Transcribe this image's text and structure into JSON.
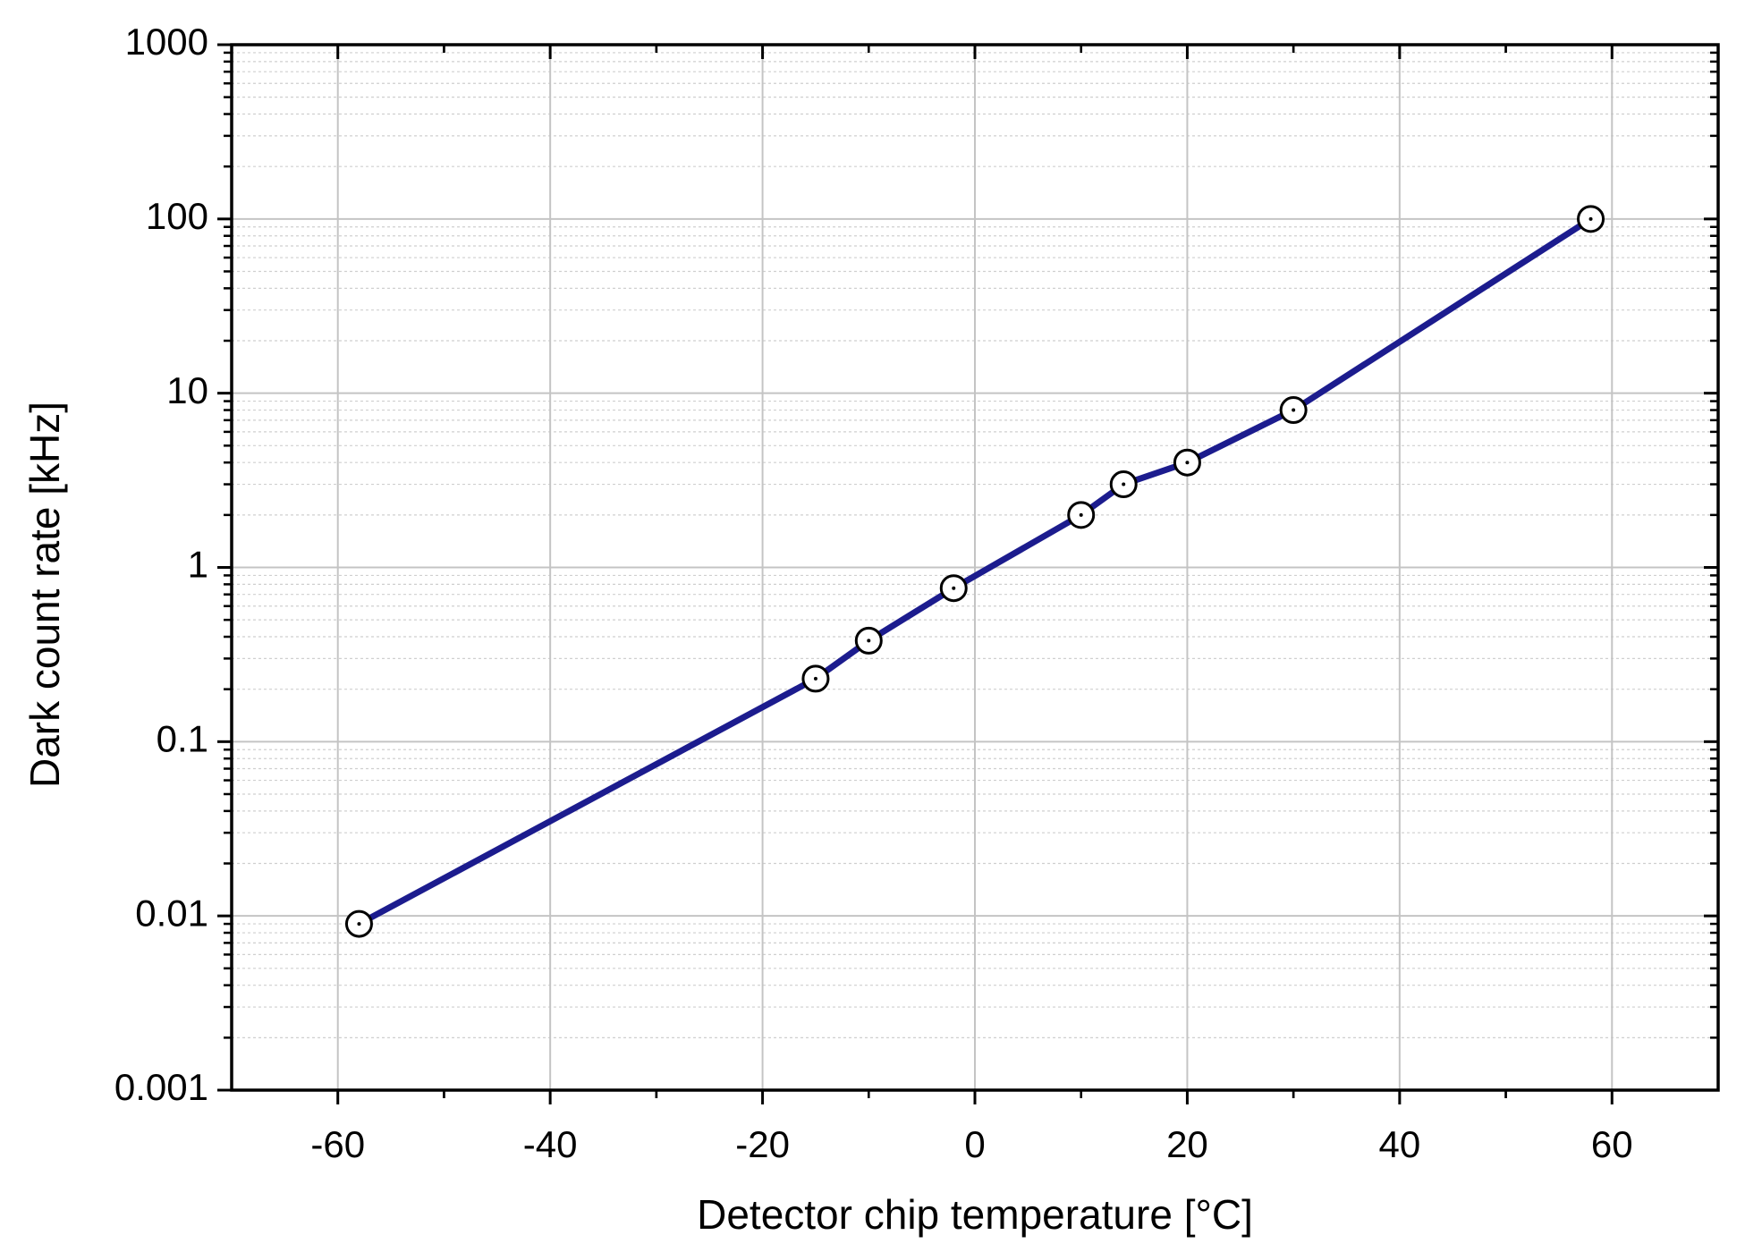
{
  "chart_data": {
    "type": "line",
    "x_label": "Detector chip temperature [°C]",
    "y_label": "Dark count rate [kHz]",
    "x": [
      -58,
      -15,
      -10,
      -2,
      10,
      14,
      20,
      30,
      58
    ],
    "series": [
      {
        "color": "#1c1c8e",
        "values": [
          0.009,
          0.23,
          0.38,
          0.76,
          2,
          3,
          4,
          8,
          100
        ]
      }
    ],
    "xlim": [
      -70,
      70
    ],
    "xticks": [
      -60,
      -40,
      -20,
      0,
      20,
      40,
      60
    ],
    "ylim": [
      0.001,
      1000
    ],
    "yticks": [
      1000,
      100,
      10,
      1,
      0.1,
      0.01,
      0.001
    ],
    "y_log": true,
    "grid": true,
    "minor_grid": true
  }
}
